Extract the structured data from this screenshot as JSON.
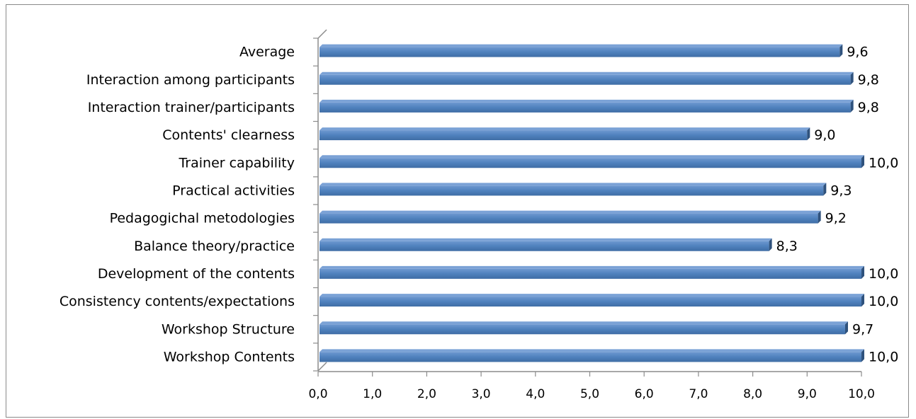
{
  "chart_data": {
    "type": "bar",
    "orientation": "horizontal",
    "style": "3d",
    "title": "",
    "xlabel": "",
    "ylabel": "",
    "xlim": [
      0,
      10
    ],
    "x_tick_labels": [
      "0,0",
      "1,0",
      "2,0",
      "3,0",
      "4,0",
      "5,0",
      "6,0",
      "7,0",
      "8,0",
      "9,0",
      "10,0"
    ],
    "grid": false,
    "legend": "none",
    "bar_color": "#4F81BD",
    "categories": [
      "Average",
      "Interaction among participants",
      "Interaction trainer/participants",
      "Contents' clearness",
      "Trainer capability",
      "Practical activities",
      "Pedagogichal metodologies",
      "Balance theory/practice",
      "Development of the contents",
      "Consistency contents/expectations",
      "Workshop Structure",
      "Workshop Contents"
    ],
    "values": [
      9.6,
      9.8,
      9.8,
      9.0,
      10.0,
      9.3,
      9.2,
      8.3,
      10.0,
      10.0,
      9.7,
      10.0
    ],
    "value_labels": [
      "9,6",
      "9,8",
      "9,8",
      "9,0",
      "10,0",
      "9,3",
      "9,2",
      "8,3",
      "10,0",
      "10,0",
      "9,7",
      "10,0"
    ]
  }
}
